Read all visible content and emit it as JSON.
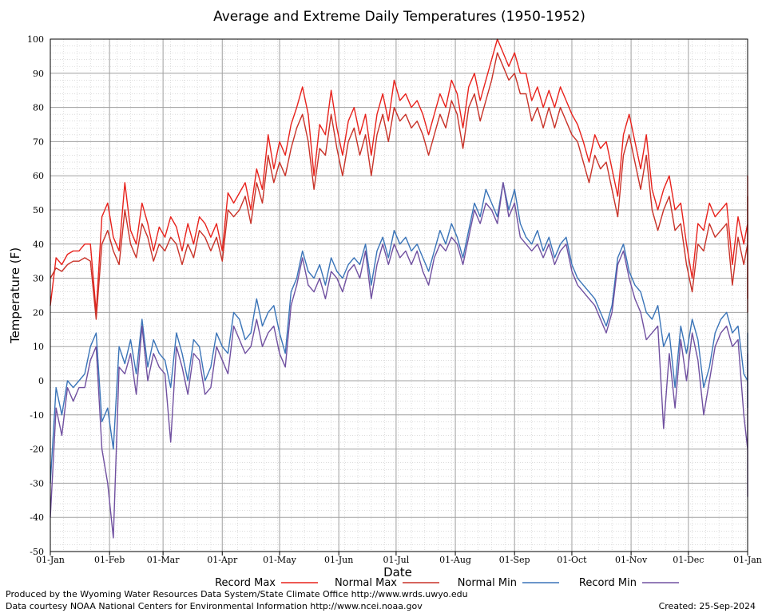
{
  "chart_data": {
    "type": "line",
    "title": "Average and Extreme Daily Temperatures (1950-1952)",
    "xlabel": "Date",
    "ylabel": "Temperature (F)",
    "ylim": [
      -50,
      100
    ],
    "y_ticks": [
      "100",
      "90",
      "80",
      "70",
      "60",
      "50",
      "40",
      "30",
      "20",
      "10",
      "0",
      "-10",
      "-20",
      "-30",
      "-40",
      "-50"
    ],
    "x_ticks": [
      "01-Jan",
      "01-Feb",
      "01-Mar",
      "01-Apr",
      "01-May",
      "01-Jun",
      "01-Jul",
      "01-Aug",
      "01-Sep",
      "01-Oct",
      "01-Nov",
      "01-Dec",
      "01-Jan"
    ],
    "grid": true,
    "legend_position": "bottom",
    "x_day_step": 3,
    "series": [
      {
        "name": "Record Max",
        "color": "#e8221c",
        "values": [
          22,
          36,
          34,
          37,
          38,
          38,
          40,
          40,
          20,
          48,
          52,
          42,
          38,
          58,
          44,
          40,
          52,
          46,
          38,
          45,
          42,
          48,
          45,
          38,
          46,
          40,
          48,
          46,
          42,
          46,
          38,
          55,
          52,
          55,
          58,
          50,
          62,
          56,
          72,
          62,
          70,
          66,
          75,
          80,
          86,
          78,
          60,
          75,
          72,
          85,
          74,
          66,
          76,
          80,
          72,
          78,
          66,
          78,
          84,
          76,
          88,
          82,
          84,
          80,
          82,
          78,
          72,
          78,
          84,
          80,
          88,
          84,
          74,
          86,
          90,
          82,
          88,
          94,
          100,
          96,
          92,
          96,
          90,
          90,
          82,
          86,
          80,
          85,
          80,
          86,
          82,
          78,
          75,
          70,
          64,
          72,
          68,
          70,
          62,
          54,
          72,
          78,
          70,
          62,
          72,
          56,
          50,
          56,
          60,
          50,
          52,
          40,
          30,
          46,
          44,
          52,
          48,
          50,
          52,
          34,
          48,
          40,
          46,
          52,
          60,
          40,
          30,
          28,
          24,
          32,
          42,
          36,
          56,
          48,
          38,
          30,
          33
        ]
      },
      {
        "name": "Normal Max",
        "color": "#c83228",
        "values": [
          30,
          33,
          32,
          34,
          35,
          35,
          36,
          35,
          18,
          40,
          44,
          38,
          34,
          50,
          40,
          36,
          46,
          42,
          35,
          40,
          38,
          42,
          40,
          34,
          40,
          36,
          44,
          42,
          38,
          42,
          35,
          50,
          48,
          50,
          54,
          46,
          58,
          52,
          66,
          58,
          64,
          60,
          68,
          74,
          78,
          70,
          56,
          68,
          66,
          78,
          68,
          60,
          70,
          74,
          66,
          72,
          60,
          72,
          78,
          70,
          80,
          76,
          78,
          74,
          76,
          72,
          66,
          72,
          78,
          74,
          82,
          78,
          68,
          80,
          84,
          76,
          82,
          88,
          96,
          92,
          88,
          90,
          84,
          84,
          76,
          80,
          74,
          80,
          74,
          80,
          76,
          72,
          70,
          64,
          58,
          66,
          62,
          64,
          56,
          48,
          66,
          72,
          64,
          56,
          66,
          50,
          44,
          50,
          54,
          44,
          46,
          34,
          26,
          40,
          38,
          46,
          42,
          44,
          46,
          28,
          42,
          34,
          40,
          46,
          54,
          34,
          26,
          24,
          20,
          28,
          36,
          30,
          50,
          42,
          32,
          28,
          30
        ]
      },
      {
        "name": "Normal Min",
        "color": "#3a74b8",
        "values": [
          -30,
          -2,
          -10,
          0,
          -2,
          0,
          2,
          10,
          14,
          -12,
          -8,
          -20,
          10,
          5,
          12,
          2,
          18,
          4,
          12,
          8,
          6,
          -2,
          14,
          8,
          0,
          12,
          10,
          0,
          4,
          14,
          10,
          8,
          20,
          18,
          12,
          14,
          24,
          16,
          20,
          22,
          14,
          8,
          26,
          30,
          38,
          32,
          30,
          34,
          28,
          36,
          32,
          30,
          34,
          36,
          34,
          40,
          28,
          38,
          42,
          36,
          44,
          40,
          42,
          38,
          40,
          36,
          32,
          38,
          44,
          40,
          46,
          42,
          36,
          44,
          52,
          48,
          56,
          52,
          48,
          58,
          50,
          56,
          46,
          42,
          40,
          44,
          38,
          42,
          36,
          40,
          42,
          34,
          30,
          28,
          26,
          24,
          20,
          16,
          22,
          36,
          40,
          32,
          28,
          26,
          20,
          18,
          22,
          10,
          14,
          -2,
          16,
          8,
          18,
          12,
          -2,
          4,
          14,
          18,
          20,
          14,
          16,
          2,
          0,
          4,
          14,
          -6,
          -2,
          0,
          4,
          10,
          -4,
          2,
          6,
          10,
          -2,
          2,
          -8
        ]
      },
      {
        "name": "Record Min",
        "color": "#7050a0",
        "values": [
          -40,
          -8,
          -16,
          -2,
          -6,
          -2,
          -2,
          6,
          10,
          -20,
          -30,
          -46,
          4,
          2,
          8,
          -4,
          16,
          0,
          8,
          4,
          2,
          -18,
          10,
          4,
          -4,
          8,
          6,
          -4,
          -2,
          10,
          6,
          2,
          16,
          12,
          8,
          10,
          18,
          10,
          14,
          16,
          8,
          4,
          22,
          28,
          36,
          28,
          26,
          30,
          24,
          32,
          30,
          26,
          32,
          34,
          30,
          38,
          24,
          34,
          40,
          34,
          40,
          36,
          38,
          34,
          38,
          32,
          28,
          36,
          40,
          38,
          42,
          40,
          34,
          42,
          50,
          46,
          52,
          50,
          46,
          58,
          48,
          52,
          42,
          40,
          38,
          40,
          36,
          40,
          34,
          38,
          40,
          32,
          28,
          26,
          24,
          22,
          18,
          14,
          20,
          34,
          38,
          30,
          24,
          20,
          12,
          14,
          16,
          -14,
          8,
          -8,
          12,
          0,
          14,
          6,
          -10,
          0,
          10,
          14,
          16,
          10,
          12,
          -10,
          -20,
          -8,
          8,
          -12,
          -30,
          -10,
          -4,
          4,
          -34,
          -12,
          -8,
          -6,
          -10,
          -8,
          -12
        ]
      }
    ]
  },
  "footer": {
    "credit_line_1": "Produced by the Wyoming Water Resources Data System/State Climate Office http://www.wrds.uwyo.edu",
    "credit_line_2": "Data courtesy NOAA National Centers for Environmental Information http://www.ncei.noaa.gov",
    "created": "Created: 25-Sep-2024"
  }
}
